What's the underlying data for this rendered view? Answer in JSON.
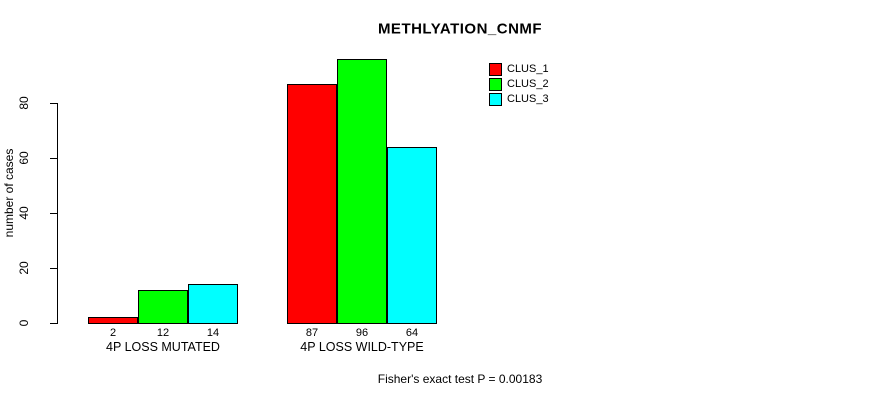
{
  "title": "METHLYATION_CNMF",
  "y_axis": {
    "label": "number of cases",
    "ticks": [
      0,
      20,
      40,
      60,
      80
    ]
  },
  "footer": "Fisher's exact test P = 0.00183",
  "legend": {
    "position": "top-right",
    "entries": [
      {
        "label": "CLUS_1",
        "color": "#FF0000"
      },
      {
        "label": "CLUS_2",
        "color": "#00FF00"
      },
      {
        "label": "CLUS_3",
        "color": "#00FFFF"
      }
    ]
  },
  "chart_data": {
    "type": "bar",
    "title": "METHLYATION_CNMF",
    "categories": [
      "4P LOSS MUTATED",
      "4P LOSS WILD-TYPE"
    ],
    "series": [
      {
        "name": "CLUS_1",
        "color": "#FF0000",
        "values": [
          2,
          87
        ]
      },
      {
        "name": "CLUS_2",
        "color": "#00FF00",
        "values": [
          12,
          96
        ]
      },
      {
        "name": "CLUS_3",
        "color": "#00FFFF",
        "values": [
          14,
          64
        ]
      }
    ],
    "bar_value_labels": [
      [
        "2",
        "12",
        "14"
      ],
      [
        "87",
        "96",
        "64"
      ]
    ],
    "xlabel": "",
    "ylabel": "number of cases",
    "ylim": [
      0,
      96
    ],
    "y_ticks": [
      0,
      20,
      40,
      60,
      80
    ],
    "grid": false,
    "legend_position": "top-right",
    "annotation": "Fisher's exact test P = 0.00183",
    "bar_border_color": "#000000"
  }
}
